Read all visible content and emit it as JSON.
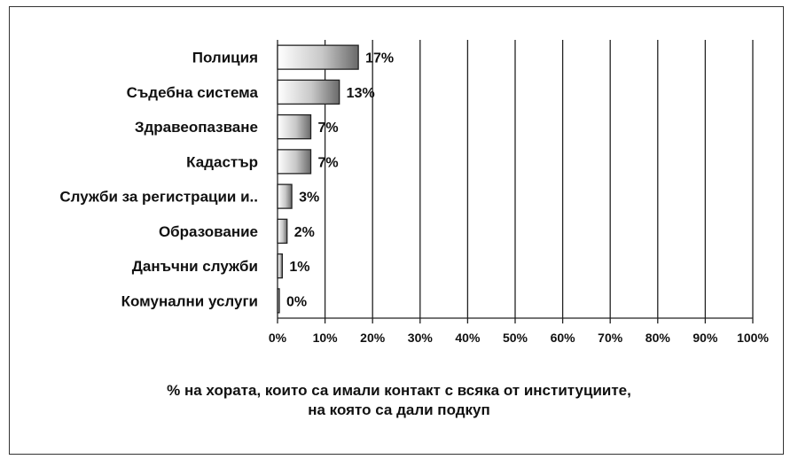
{
  "chart_data": {
    "type": "bar",
    "orientation": "horizontal",
    "categories": [
      "Полиция",
      "Съдебна система",
      "Здравеопазване",
      "Кадастър",
      "Служби за регистрации и..",
      "Образование",
      "Данъчни служби",
      "Комунални услуги"
    ],
    "values": [
      17,
      13,
      7,
      7,
      3,
      2,
      1,
      0
    ],
    "data_labels": [
      "17%",
      "13%",
      "7%",
      "7%",
      "3%",
      "2%",
      "1%",
      "0%"
    ],
    "xlim": [
      0,
      100
    ],
    "x_ticks": [
      "0%",
      "10%",
      "20%",
      "30%",
      "40%",
      "50%",
      "60%",
      "70%",
      "80%",
      "90%",
      "100%"
    ],
    "grid": "vertical",
    "bar_style": "gradient white to gray",
    "caption_lines": [
      "% на хората, които са имали контакт с всяка от институциите,",
      "на която са дали подкуп"
    ]
  }
}
